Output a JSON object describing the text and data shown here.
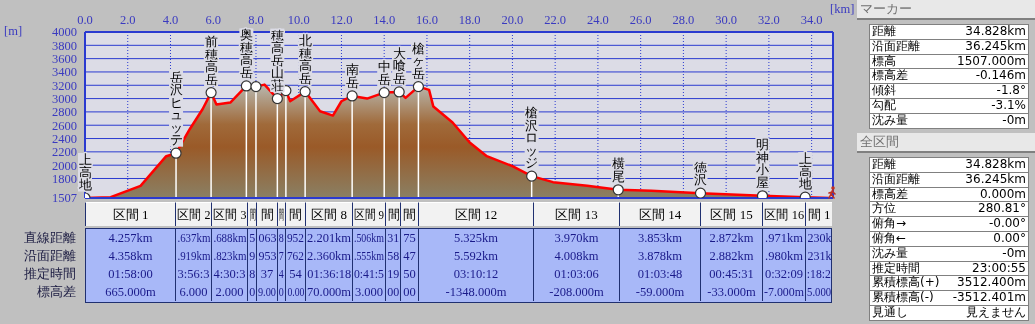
{
  "chart_data": [
    {
      "type": "area",
      "xlabel": "[km]",
      "ylabel": "[m]",
      "xlim": [
        0,
        35
      ],
      "ylim": [
        1507,
        4000
      ],
      "xticks": [
        {
          "value": 0,
          "label": "0.0"
        },
        {
          "value": 2,
          "label": "2.0"
        },
        {
          "value": 4,
          "label": "4.0"
        },
        {
          "value": 6,
          "label": "6.0"
        },
        {
          "value": 8,
          "label": "8.0"
        },
        {
          "value": 10,
          "label": "10.0"
        },
        {
          "value": 12,
          "label": "12.0"
        },
        {
          "value": 14,
          "label": "14.0"
        },
        {
          "value": 16,
          "label": "16.0"
        },
        {
          "value": 18,
          "label": "18.0"
        },
        {
          "value": 20,
          "label": "20.0"
        },
        {
          "value": 22,
          "label": "22.0"
        },
        {
          "value": 24,
          "label": "24.0"
        },
        {
          "value": 26,
          "label": "26.0"
        },
        {
          "value": 28,
          "label": "28.0"
        },
        {
          "value": 30,
          "label": "30.0"
        },
        {
          "value": 32,
          "label": "32.0"
        },
        {
          "value": 34,
          "label": "34.0"
        }
      ],
      "yticks": [
        1507,
        1800,
        2000,
        2200,
        2400,
        2600,
        2800,
        3000,
        3200,
        3400,
        3600,
        3800,
        4000
      ],
      "grid": true,
      "series": [
        {
          "type": "area",
          "color": "#ff0000",
          "x": [
            0,
            1.2,
            2.6,
            3.8,
            4.26,
            4.9,
            5.5,
            5.9,
            6.15,
            6.8,
            7.55,
            8.0,
            8.4,
            9.0,
            9.4,
            9.6,
            10.3,
            11.0,
            11.6,
            12.0,
            12.5,
            13.2,
            14.0,
            14.7,
            15.0,
            15.6,
            16.1,
            16.3,
            17.2,
            18.0,
            18.8,
            20.0,
            20.9,
            21.9,
            23.5,
            24.95,
            26.5,
            28.8,
            31.7,
            33.7,
            34.83
          ],
          "values": [
            1507,
            1520,
            1690,
            2135,
            2180,
            2540,
            2840,
            3090,
            2910,
            2940,
            3190,
            3180,
            3210,
            3000,
            3120,
            2960,
            3105,
            2810,
            2745,
            2960,
            3040,
            3000,
            3090,
            3100,
            3010,
            3180,
            3130,
            2880,
            2640,
            2340,
            2135,
            1985,
            1835,
            1745,
            1690,
            1630,
            1615,
            1580,
            1540,
            1520,
            1507
          ]
        },
        {
          "type": "scatter",
          "color": "#ffffff",
          "marker": "circle",
          "x": [
            0,
            4.26,
            5.9,
            7.55,
            8.0,
            9.0,
            9.4,
            10.3,
            12.5,
            14.0,
            14.7,
            15.6,
            20.9,
            24.95,
            28.8,
            31.7,
            33.7
          ],
          "values": [
            1507,
            2180,
            3090,
            3190,
            3180,
            3000,
            3120,
            3105,
            3040,
            3090,
            3100,
            3180,
            1835,
            1630,
            1580,
            1540,
            1520
          ]
        }
      ],
      "annotations": [
        {
          "text": "上高地",
          "x": 0,
          "y": 1507
        },
        {
          "text": "岳沢ヒュッテ",
          "x": 4.26,
          "y": 2180
        },
        {
          "text": "前穂高岳",
          "x": 5.9,
          "y": 3090
        },
        {
          "text": "奥穂高岳",
          "x": 7.55,
          "y": 3190
        },
        {
          "text": "穂高岳山荘",
          "x": 9.0,
          "y": 3000
        },
        {
          "text": "北穂高岳",
          "x": 10.3,
          "y": 3105
        },
        {
          "text": "南岳",
          "x": 12.5,
          "y": 3040
        },
        {
          "text": "中岳",
          "x": 14.0,
          "y": 3090
        },
        {
          "text": "大喰岳",
          "x": 14.7,
          "y": 3100
        },
        {
          "text": "槍ヶ岳",
          "x": 15.6,
          "y": 3180
        },
        {
          "text": "槍沢ロッジ",
          "x": 20.9,
          "y": 1835
        },
        {
          "text": "横尾",
          "x": 24.95,
          "y": 1630
        },
        {
          "text": "徳沢",
          "x": 28.8,
          "y": 1580
        },
        {
          "text": "明神小屋",
          "x": 31.7,
          "y": 1540
        },
        {
          "text": "上高地",
          "x": 33.7,
          "y": 1520
        }
      ]
    },
    {
      "type": "other",
      "categories": [
        "区間 1",
        "区間 2",
        "区間 3",
        "間",
        "間",
        "間",
        "間",
        "区間 8",
        "区間 9",
        "間",
        "間",
        "区間 12",
        "区間 13",
        "区間 14",
        "区間 15",
        "区間 16",
        "間 1"
      ],
      "y_categories": [
        "直線距離",
        "沿面距離",
        "推定時間",
        "標高差"
      ],
      "cell_labels": [
        [
          "4.257km",
          ".637km",
          ".688km",
          "5",
          "063",
          "8",
          "952",
          "2.201km",
          ".506km",
          "31",
          "75",
          "5.325km",
          "3.970km",
          "3.853km",
          "2.872km",
          ".971km",
          "230k"
        ],
        [
          "4.358km",
          ".919km",
          ".823km",
          "9",
          "953",
          "7",
          "762",
          "2.360km",
          ".555km",
          "58",
          "47",
          "5.592km",
          "4.008km",
          "3.878km",
          "2.882km",
          ".980km",
          "231k"
        ],
        [
          "01:58:00",
          "3:56:3",
          "4:30:3",
          "8",
          "37",
          "4",
          "54",
          "01:36:18",
          "0:41:5",
          "19",
          "50",
          "03:10:12",
          "01:03:06",
          "01:03:48",
          "00:45:31",
          "0:32:09",
          ":18:2"
        ],
        [
          "665.000m",
          "6.000",
          "2.000",
          "0",
          "9.00",
          "0",
          "0.00",
          "70.000m",
          "3.000",
          "00",
          "00",
          "-1348.000m",
          "-208.000m",
          "-59.000m",
          "-33.000m",
          "-7.000m",
          "5.000"
        ]
      ]
    },
    {
      "type": "other",
      "title": "マーカー",
      "y_categories": [
        "距離",
        "沿面距離",
        "標高",
        "標高差",
        "傾斜",
        "勾配",
        "沈み量"
      ],
      "cell_labels": [
        [
          "34.828km"
        ],
        [
          "36.245km"
        ],
        [
          "1507.000m"
        ],
        [
          "-0.146m"
        ],
        [
          "-1.8°"
        ],
        [
          "-3.1%"
        ],
        [
          "-0m"
        ]
      ]
    },
    {
      "type": "other",
      "title": "全区間",
      "y_categories": [
        "距離",
        "沿面距離",
        "標高差",
        "方位",
        "俯角→",
        "俯角←",
        "沈み量",
        "推定時間",
        "累積標高(+)",
        "累積標高(-)",
        "見通し"
      ],
      "cell_labels": [
        [
          "34.828km"
        ],
        [
          "36.245km"
        ],
        [
          "0.000m"
        ],
        [
          "280.81°"
        ],
        [
          "-0.00°"
        ],
        [
          "0.00°"
        ],
        [
          "-0m"
        ],
        [
          "23:00:55"
        ],
        [
          "3512.400m"
        ],
        [
          "-3512.401m"
        ],
        [
          "見えません"
        ]
      ]
    }
  ]
}
